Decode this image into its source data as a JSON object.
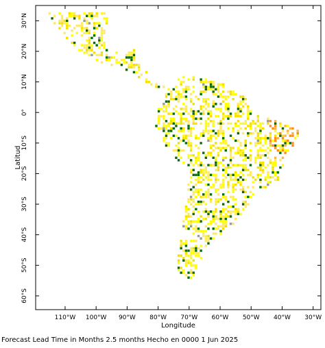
{
  "map": {
    "xlabel": "Longitude",
    "ylabel": "Latitud",
    "footer": "Forecast Lead Time in Months 2.5 months Hecho en 0000 1 Jun 2025",
    "xlim": [
      -119.5,
      -27.5
    ],
    "ylim": [
      -64.5,
      35
    ],
    "xticks": [
      {
        "value": -110,
        "label": "110°W"
      },
      {
        "value": -100,
        "label": "100°W"
      },
      {
        "value": -90,
        "label": "90°W"
      },
      {
        "value": -80,
        "label": "80°W"
      },
      {
        "value": -70,
        "label": "70°W"
      },
      {
        "value": -60,
        "label": "60°W"
      },
      {
        "value": -50,
        "label": "50°W"
      },
      {
        "value": -40,
        "label": "40°W"
      },
      {
        "value": -30,
        "label": "30°W"
      }
    ],
    "yticks": [
      {
        "value": 30,
        "label": "30°N"
      },
      {
        "value": 20,
        "label": "20°N"
      },
      {
        "value": 10,
        "label": "10°N"
      },
      {
        "value": 0,
        "label": "0°"
      },
      {
        "value": -10,
        "label": "10°S"
      },
      {
        "value": -20,
        "label": "20°S"
      },
      {
        "value": -30,
        "label": "30°S"
      },
      {
        "value": -40,
        "label": "40°S"
      },
      {
        "value": -50,
        "label": "50°S"
      },
      {
        "value": -60,
        "label": "60°S"
      }
    ]
  }
}
